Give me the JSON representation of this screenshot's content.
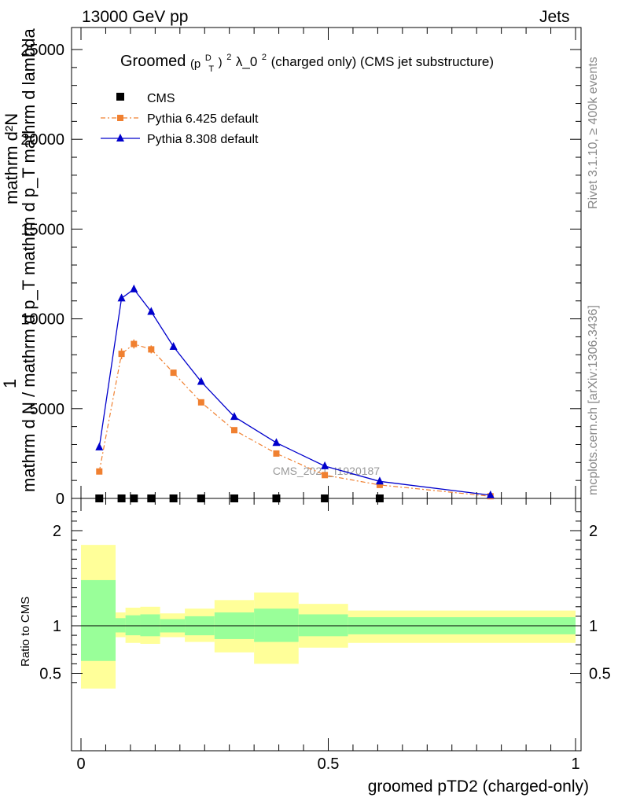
{
  "header": {
    "left": "13000 GeV pp",
    "right": "Jets"
  },
  "side_labels": {
    "rivet": "Rivet 3.1.10, ≥ 400k events",
    "mcplots": "mcplots.cern.ch [arXiv:1306.3436]"
  },
  "watermark": "CMS_2021_I1920187",
  "main_title": {
    "prefix": "Groomed",
    "formula": "(p",
    "sup1": "D",
    "sub1": "T",
    "close": ")",
    "sup2": "2",
    "lam": " λ_0",
    "sup3": "2",
    "suffix": "  (charged only) (CMS jet substructure)"
  },
  "ylabel_main": {
    "line1": "1",
    "denominator": "mathrm d N / mathrm d p_T mathrm d p_T mathrm d lambda",
    "numerator": "mathrm d²N"
  },
  "ylabel_ratio": "Ratio to CMS",
  "xlabel": "groomed pTD2 (charged-only)",
  "chart_data": [
    {
      "type": "line",
      "panel": "main",
      "xlim": [
        -0.02,
        1.0
      ],
      "ylim": [
        0,
        26000
      ],
      "yticks": [
        0,
        5000,
        10000,
        15000,
        20000,
        25000
      ],
      "ytick_labels": [
        "0",
        "5000",
        "10000",
        "15000",
        "20000",
        "25000"
      ],
      "legend_position": "top-left",
      "series": [
        {
          "name": "CMS",
          "style": "data",
          "color": "#000000",
          "x": [
            0.037,
            0.082,
            0.107,
            0.142,
            0.187,
            0.243,
            0.31,
            0.395,
            0.493,
            0.604
          ],
          "y": [
            0,
            0,
            0,
            0,
            0,
            0,
            0,
            0,
            0,
            0
          ]
        },
        {
          "name": "Pythia 6.425 default",
          "style": "dashdot-square",
          "color": "#f08030",
          "x": [
            0.037,
            0.082,
            0.107,
            0.142,
            0.187,
            0.243,
            0.31,
            0.395,
            0.493,
            0.604,
            0.828
          ],
          "y": [
            1500,
            8050,
            8600,
            8300,
            7000,
            5350,
            3800,
            2500,
            1300,
            750,
            120
          ],
          "err": [
            0,
            300,
            250,
            220,
            0,
            0,
            0,
            0,
            0,
            0,
            0
          ]
        },
        {
          "name": "Pythia 8.308 default",
          "style": "solid-triangle",
          "color": "#0000cc",
          "x": [
            0.037,
            0.082,
            0.107,
            0.142,
            0.187,
            0.243,
            0.31,
            0.395,
            0.493,
            0.604,
            0.828
          ],
          "y": [
            2850,
            11150,
            11650,
            10400,
            8450,
            6500,
            4550,
            3100,
            1800,
            950,
            180
          ]
        }
      ]
    },
    {
      "type": "area",
      "panel": "ratio",
      "xlim": [
        -0.02,
        1.0
      ],
      "ylim": [
        0.35,
        2.25
      ],
      "yticks": [
        0.5,
        1,
        2
      ],
      "ytick_labels": [
        "0.5",
        "1",
        "2"
      ],
      "xticks": [
        0,
        0.5,
        1
      ],
      "xtick_labels": [
        "0",
        "0.5",
        "1"
      ],
      "bins": [
        {
          "x0": 0.0,
          "x1": 0.07,
          "inner": [
            0.63,
            1.48
          ],
          "outer": [
            0.34,
            1.85
          ]
        },
        {
          "x0": 0.07,
          "x1": 0.09,
          "inner": [
            0.93,
            1.08
          ],
          "outer": [
            0.88,
            1.14
          ]
        },
        {
          "x0": 0.09,
          "x1": 0.12,
          "inner": [
            0.9,
            1.11
          ],
          "outer": [
            0.82,
            1.19
          ]
        },
        {
          "x0": 0.12,
          "x1": 0.16,
          "inner": [
            0.89,
            1.12
          ],
          "outer": [
            0.81,
            1.2
          ]
        },
        {
          "x0": 0.16,
          "x1": 0.21,
          "inner": [
            0.93,
            1.07
          ],
          "outer": [
            0.88,
            1.13
          ]
        },
        {
          "x0": 0.21,
          "x1": 0.27,
          "inner": [
            0.9,
            1.1
          ],
          "outer": [
            0.83,
            1.18
          ]
        },
        {
          "x0": 0.27,
          "x1": 0.35,
          "inner": [
            0.86,
            1.14
          ],
          "outer": [
            0.72,
            1.27
          ]
        },
        {
          "x0": 0.35,
          "x1": 0.44,
          "inner": [
            0.83,
            1.18
          ],
          "outer": [
            0.6,
            1.35
          ]
        },
        {
          "x0": 0.44,
          "x1": 0.54,
          "inner": [
            0.89,
            1.12
          ],
          "outer": [
            0.77,
            1.23
          ]
        },
        {
          "x0": 0.54,
          "x1": 1.0,
          "inner": [
            0.91,
            1.09
          ],
          "outer": [
            0.82,
            1.16
          ]
        }
      ],
      "band_colors": {
        "inner": "#99ff99",
        "outer": "#ffff99"
      },
      "reference_line": 1
    }
  ]
}
